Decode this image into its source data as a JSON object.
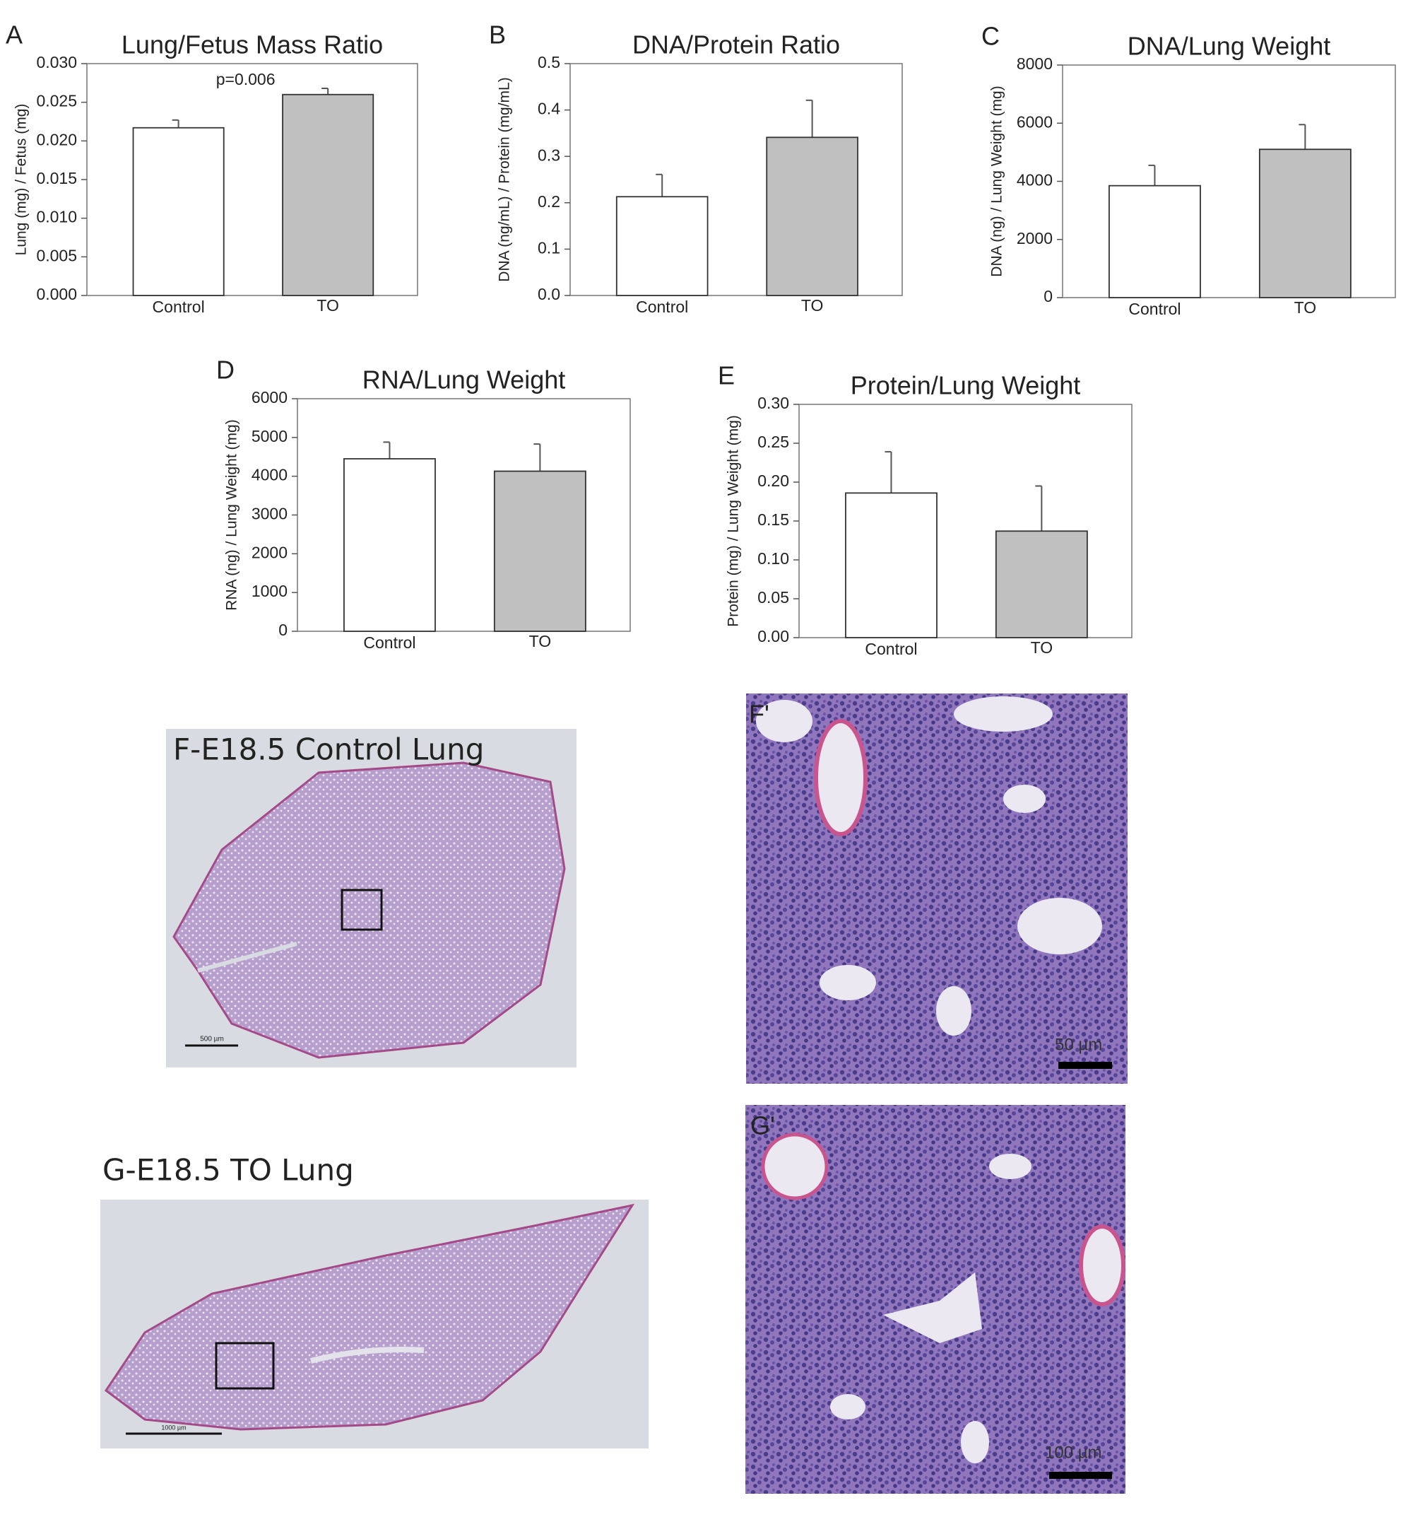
{
  "chart_data": [
    {
      "type": "bar",
      "panel_label": "A",
      "title": "Lung/Fetus Mass Ratio",
      "ylabel": "Lung (mg) / Fetus (mg)",
      "annotation": "p=0.006",
      "categories": [
        "Control",
        "TO"
      ],
      "values": [
        0.0217,
        0.026
      ],
      "errors": [
        0.001,
        0.0008
      ],
      "colors": [
        "#ffffff",
        "#c0c0c0"
      ],
      "ylim": [
        0,
        0.03
      ],
      "yticks": [
        {
          "value": 0,
          "label": "0.000"
        },
        {
          "value": 0.005,
          "label": "0.005"
        },
        {
          "value": 0.01,
          "label": "0.010"
        },
        {
          "value": 0.015,
          "label": "0.015"
        },
        {
          "value": 0.02,
          "label": "0.020"
        },
        {
          "value": 0.025,
          "label": "0.025"
        },
        {
          "value": 0.03,
          "label": "0.030"
        }
      ]
    },
    {
      "type": "bar",
      "panel_label": "B",
      "title": "DNA/Protein Ratio",
      "ylabel": "DNA (ng/mL) / Protein (mg/mL)",
      "categories": [
        "Control",
        "TO"
      ],
      "values": [
        0.213,
        0.341
      ],
      "errors": [
        0.048,
        0.08
      ],
      "colors": [
        "#ffffff",
        "#c0c0c0"
      ],
      "ylim": [
        0,
        0.5
      ],
      "yticks": [
        {
          "value": 0,
          "label": "0.0"
        },
        0.1,
        0.2,
        0.3,
        0.4,
        0.5
      ]
    },
    {
      "type": "bar",
      "panel_label": "C",
      "title": "DNA/Lung Weight",
      "ylabel": "DNA (ng) / Lung Weight (mg)",
      "categories": [
        "Control",
        "TO"
      ],
      "values": [
        3850,
        5100
      ],
      "errors": [
        700,
        850
      ],
      "colors": [
        "#ffffff",
        "#c0c0c0"
      ],
      "ylim": [
        0,
        8000
      ],
      "yticks": [
        0,
        2000,
        4000,
        6000,
        8000
      ]
    },
    {
      "type": "bar",
      "panel_label": "D",
      "title": "RNA/Lung Weight",
      "ylabel": "RNA (ng) / Lung Weight (mg)",
      "categories": [
        "Control",
        "TO"
      ],
      "values": [
        4450,
        4130
      ],
      "errors": [
        430,
        700
      ],
      "colors": [
        "#ffffff",
        "#c0c0c0"
      ],
      "ylim": [
        0,
        6000
      ],
      "yticks": [
        0,
        1000,
        2000,
        3000,
        4000,
        5000,
        6000
      ]
    },
    {
      "type": "bar",
      "panel_label": "E",
      "title": "Protein/Lung Weight",
      "ylabel": "Protein (mg) / Lung Weight (mg)",
      "categories": [
        "Control",
        "TO"
      ],
      "values": [
        0.186,
        0.137
      ],
      "errors": [
        0.053,
        0.058
      ],
      "colors": [
        "#ffffff",
        "#c0c0c0"
      ],
      "ylim": [
        0,
        0.3
      ],
      "yticks": [
        {
          "value": 0,
          "label": "0.00"
        },
        0.05,
        {
          "value": 0.1,
          "label": "0.10"
        },
        0.15,
        {
          "value": 0.2,
          "label": "0.20"
        },
        0.25,
        {
          "value": 0.3,
          "label": "0.30"
        }
      ]
    }
  ],
  "images": {
    "f": {
      "caption": "F-E18.5 Control Lung",
      "scale": "500 µm"
    },
    "g": {
      "caption": "G-E18.5 TO Lung",
      "scale": "1000 µm"
    },
    "f_detail": {
      "caption": "F'",
      "scale": "50 µm"
    },
    "g_detail": {
      "caption": "G'",
      "scale": "100 µm"
    }
  }
}
